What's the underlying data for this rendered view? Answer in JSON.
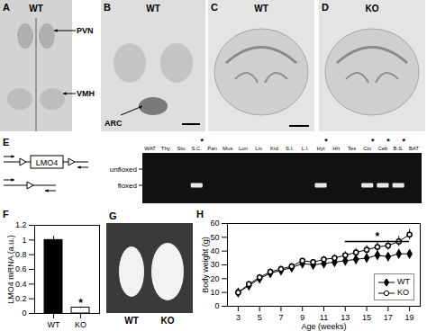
{
  "panels": {
    "A": {
      "label": "A",
      "caption": "WT",
      "annotations": [
        "PVN",
        "VMH"
      ]
    },
    "B": {
      "label": "B",
      "caption": "WT",
      "annotations": [
        "ARC"
      ]
    },
    "C": {
      "label": "C",
      "caption": "WT"
    },
    "D": {
      "label": "D",
      "caption": "KO"
    },
    "E": {
      "label": "E",
      "construct": "LMO4",
      "band_labels": [
        "unfloxed",
        "floxed"
      ],
      "mark": "*",
      "lanes": [
        {
          "name": "WAT",
          "marked": false,
          "floxed": false
        },
        {
          "name": "Thy",
          "marked": false,
          "floxed": false
        },
        {
          "name": "Sto",
          "marked": false,
          "floxed": false
        },
        {
          "name": "S.C.",
          "marked": true,
          "floxed": true
        },
        {
          "name": "Pan",
          "marked": false,
          "floxed": false
        },
        {
          "name": "Mus",
          "marked": false,
          "floxed": false
        },
        {
          "name": "Lun",
          "marked": false,
          "floxed": false
        },
        {
          "name": "Liv",
          "marked": false,
          "floxed": false
        },
        {
          "name": "Kid",
          "marked": false,
          "floxed": false
        },
        {
          "name": "S.I.",
          "marked": false,
          "floxed": false
        },
        {
          "name": "L.I.",
          "marked": false,
          "floxed": false
        },
        {
          "name": "Hyt",
          "marked": true,
          "floxed": true
        },
        {
          "name": "Hrt",
          "marked": false,
          "floxed": false
        },
        {
          "name": "Tes",
          "marked": false,
          "floxed": false
        },
        {
          "name": "Ctx",
          "marked": true,
          "floxed": true
        },
        {
          "name": "Ceb",
          "marked": true,
          "floxed": true
        },
        {
          "name": "B.S.",
          "marked": true,
          "floxed": true
        },
        {
          "name": "BAT",
          "marked": false,
          "floxed": false
        }
      ]
    },
    "G": {
      "label": "G",
      "captions": [
        "WT",
        "KO"
      ]
    }
  },
  "chart_data": [
    {
      "type": "bar",
      "title": "F",
      "categories": [
        "WT",
        "KO"
      ],
      "values": [
        1,
        0.08
      ],
      "errors": [
        0.05,
        0.01
      ],
      "colors": [
        "#000000",
        "#ffffff"
      ],
      "ylabel": "LMO4 mRNA (a.u.)",
      "ylim": [
        0,
        1.2
      ],
      "yticks": [
        0,
        0.2,
        0.4,
        0.6,
        0.8,
        1,
        1.2
      ],
      "annotations": [
        {
          "text": "*",
          "x": "KO",
          "y": 0.14
        }
      ]
    },
    {
      "type": "line",
      "title": "H",
      "xlabel": "Age (weeks)",
      "ylabel": "Body weight (g)",
      "x": [
        3,
        4,
        5,
        6,
        7,
        8,
        9,
        10,
        11,
        12,
        13,
        14,
        15,
        16,
        17,
        18,
        19
      ],
      "series": [
        {
          "name": "WT",
          "color": "#000000",
          "marker": "diamond",
          "line_style": "solid",
          "values": [
            10,
            15,
            20,
            24,
            26,
            28,
            31,
            30,
            31,
            32,
            33,
            34,
            35,
            37,
            36,
            38,
            38
          ],
          "errors": [
            0.5,
            0.7,
            0.8,
            0.9,
            1,
            1,
            1,
            1,
            1,
            1,
            1.2,
            1.2,
            1.2,
            1.3,
            1.3,
            1.4,
            1.5
          ]
        },
        {
          "name": "KO",
          "color": "#000000",
          "marker": "open-circle",
          "line_style": "solid",
          "values": [
            10,
            16,
            21,
            25,
            27,
            29,
            33,
            32,
            34,
            35,
            37,
            39,
            41,
            43,
            44,
            47,
            52
          ],
          "errors": [
            0.6,
            0.8,
            1,
            1.2,
            1.4,
            1.5,
            1.8,
            2,
            2.2,
            2.4,
            2.6,
            2.8,
            3,
            3.2,
            3.4,
            3.6,
            3.8
          ]
        }
      ],
      "xlim": [
        2,
        20
      ],
      "xticks": [
        3,
        5,
        7,
        9,
        11,
        13,
        15,
        17,
        19
      ],
      "ylim": [
        0,
        60
      ],
      "yticks": [
        0,
        10,
        20,
        30,
        40,
        50,
        60
      ],
      "legend": "lower right",
      "annotations": [
        {
          "text": "*",
          "x": [
            13,
            19
          ],
          "y": 47
        }
      ]
    }
  ]
}
